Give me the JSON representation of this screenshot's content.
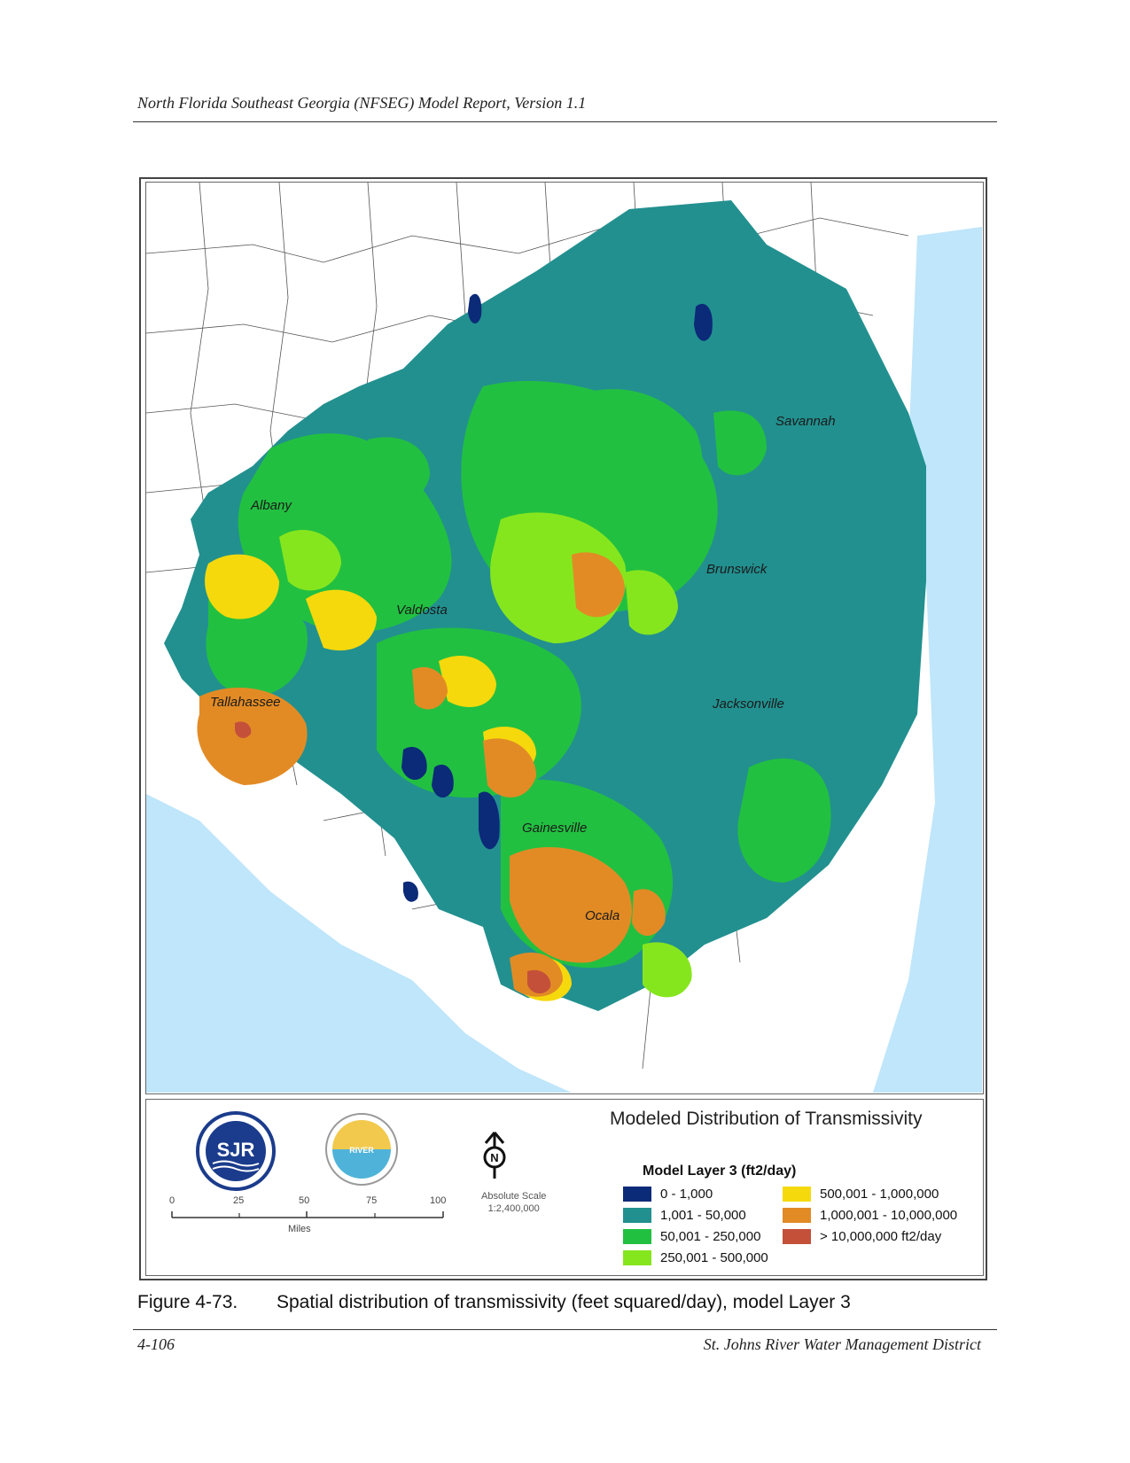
{
  "header": {
    "title": "North Florida Southeast Georgia (NFSEG) Model Report, Version 1.1"
  },
  "map": {
    "cities": [
      "Savannah",
      "Albany",
      "Brunswick",
      "Valdosta",
      "Jacksonville",
      "Tallahassee",
      "Gainesville",
      "Ocala"
    ]
  },
  "legend": {
    "title": "Modeled Distribution of Transmissivity",
    "subtitle": "Model Layer 3 (ft2/day)",
    "classes": [
      {
        "label": "0 - 1,000",
        "color": "#0b2a78"
      },
      {
        "label": "1,001 - 50,000",
        "color": "#22908f"
      },
      {
        "label": "50,001 - 250,000",
        "color": "#22c041"
      },
      {
        "label": "250,001 - 500,000",
        "color": "#86e61e"
      },
      {
        "label": "500,001 - 1,000,000",
        "color": "#f6d90c"
      },
      {
        "label": "1,000,001 - 10,000,000",
        "color": "#e28b25"
      },
      {
        "label": "> 10,000,000 ft2/day",
        "color": "#c4503a"
      }
    ],
    "scale_ticks": [
      "0",
      "25",
      "50",
      "75",
      "100"
    ],
    "scale_unit": "Miles",
    "absolute_scale_label": "Absolute Scale",
    "absolute_scale_value": "1:2,400,000",
    "north_letter": "N",
    "logo1_text": "SJR",
    "logo2_text": "RIVER"
  },
  "colors": {
    "water": "#bfe6fa",
    "land": "#ffffff",
    "boundary": "#333333"
  },
  "caption": {
    "number": "Figure 4-73.",
    "text": "Spatial distribution of transmissivity (feet squared/day), model Layer 3"
  },
  "footer": {
    "page": "4-106",
    "org": "St. Johns River Water Management District"
  }
}
